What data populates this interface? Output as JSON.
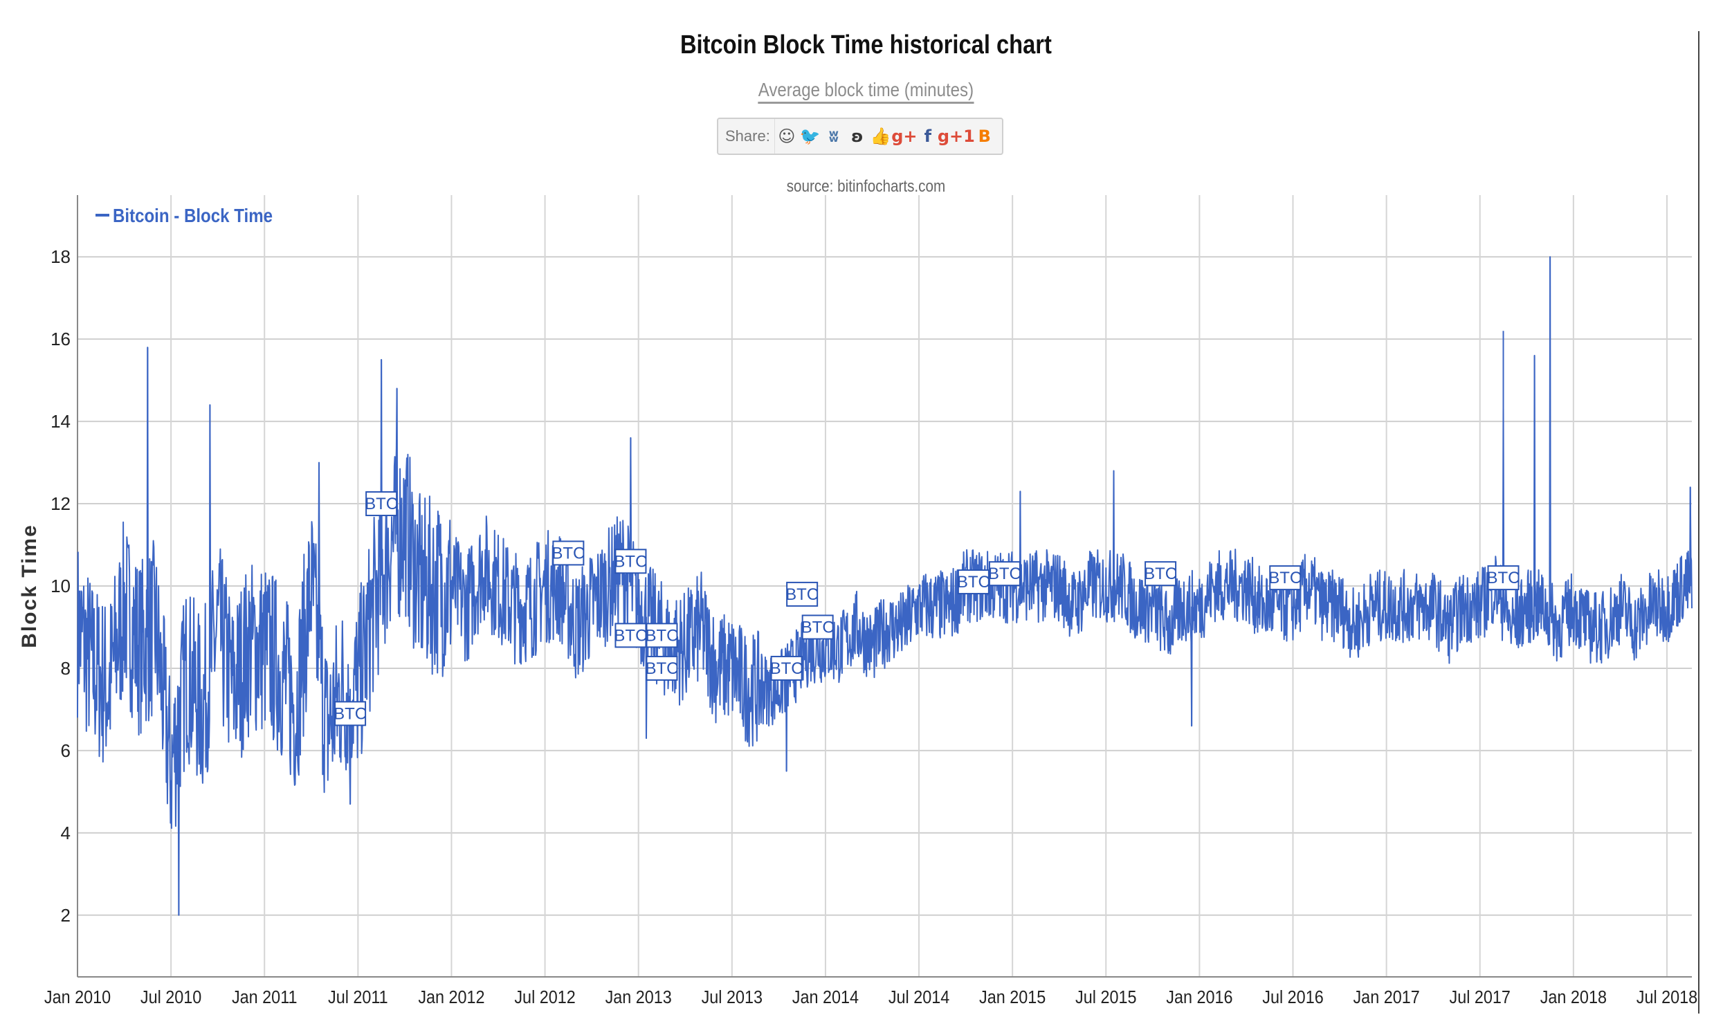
{
  "header": {
    "title": "Bitcoin Block Time historical chart",
    "subtitle": "Average block time (minutes)",
    "source": "source: bitinfocharts.com"
  },
  "share": {
    "label": "Share:",
    "icons": [
      {
        "name": "reddit-icon",
        "glyph": "☺",
        "color": "#555555"
      },
      {
        "name": "twitter-icon",
        "glyph": "🐦",
        "color": "#1da1f2"
      },
      {
        "name": "vk-icon",
        "glyph": "ʬ",
        "color": "#4a76a8"
      },
      {
        "name": "weibo-icon",
        "glyph": "ʚ",
        "color": "#333333"
      },
      {
        "name": "like-icon",
        "glyph": "👍",
        "color": "#4a76a8"
      },
      {
        "name": "google-plus-icon",
        "glyph": "g+",
        "color": "#dd4b39"
      },
      {
        "name": "facebook-icon",
        "glyph": "f",
        "color": "#3b5998"
      },
      {
        "name": "google-plus-one-icon",
        "glyph": "g+1",
        "color": "#dd4b39"
      },
      {
        "name": "blogger-icon",
        "glyph": "B",
        "color": "#f57d00"
      }
    ]
  },
  "chart_data": {
    "type": "line",
    "series": [
      {
        "name": "Bitcoin - Block Time",
        "color": "#3b65c4",
        "x": [
          "2010-01",
          "2010-02",
          "2010-03",
          "2010-04",
          "2010-05",
          "2010-06",
          "2010-07",
          "2010-08",
          "2010-09",
          "2010-10",
          "2010-11",
          "2010-12",
          "2011-01",
          "2011-02",
          "2011-03",
          "2011-04",
          "2011-05",
          "2011-06",
          "2011-07",
          "2011-08",
          "2011-09",
          "2011-10",
          "2011-11",
          "2011-12",
          "2012-01",
          "2012-02",
          "2012-03",
          "2012-04",
          "2012-05",
          "2012-06",
          "2012-07",
          "2012-08",
          "2012-09",
          "2012-10",
          "2012-11",
          "2012-12",
          "2013-01",
          "2013-02",
          "2013-03",
          "2013-04",
          "2013-05",
          "2013-06",
          "2013-07",
          "2013-08",
          "2013-09",
          "2013-10",
          "2013-11",
          "2013-12",
          "2014-01",
          "2014-02",
          "2014-03",
          "2014-04",
          "2014-05",
          "2014-06",
          "2014-07",
          "2014-08",
          "2014-09",
          "2014-10",
          "2014-11",
          "2014-12",
          "2015-01",
          "2015-02",
          "2015-03",
          "2015-04",
          "2015-05",
          "2015-06",
          "2015-07",
          "2015-08",
          "2015-09",
          "2015-10",
          "2015-11",
          "2015-12",
          "2016-01",
          "2016-02",
          "2016-03",
          "2016-04",
          "2016-05",
          "2016-06",
          "2016-07",
          "2016-08",
          "2016-09",
          "2016-10",
          "2016-11",
          "2016-12",
          "2017-01",
          "2017-02",
          "2017-03",
          "2017-04",
          "2017-05",
          "2017-06",
          "2017-07",
          "2017-08",
          "2017-09",
          "2017-10",
          "2017-11",
          "2017-12",
          "2018-01",
          "2018-02",
          "2018-03",
          "2018-04",
          "2018-05",
          "2018-06",
          "2018-07",
          "2018-08"
        ],
        "y": [
          9.0,
          8.0,
          7.5,
          9.5,
          8.5,
          9.0,
          5.5,
          8.0,
          7.0,
          9.0,
          7.5,
          8.5,
          8.5,
          8.0,
          7.0,
          10.0,
          6.5,
          7.5,
          7.5,
          9.5,
          11.0,
          11.5,
          10.0,
          10.0,
          10.0,
          9.5,
          10.5,
          10.0,
          9.5,
          9.5,
          10.0,
          10.0,
          9.0,
          9.5,
          10.0,
          10.5,
          9.5,
          9.0,
          8.5,
          8.5,
          9.0,
          8.0,
          8.0,
          7.5,
          7.5,
          7.5,
          8.0,
          8.5,
          8.5,
          8.5,
          9.0,
          8.5,
          9.0,
          9.0,
          9.5,
          9.5,
          9.5,
          10.0,
          10.0,
          10.0,
          10.0,
          10.0,
          10.0,
          10.0,
          9.5,
          10.0,
          10.0,
          10.0,
          9.5,
          9.5,
          9.0,
          9.5,
          9.5,
          10.0,
          10.0,
          10.0,
          9.5,
          9.5,
          9.5,
          10.0,
          9.5,
          9.5,
          9.0,
          9.5,
          9.5,
          9.5,
          9.5,
          9.5,
          9.0,
          9.5,
          9.5,
          10.0,
          9.0,
          9.5,
          9.5,
          9.0,
          9.5,
          9.0,
          9.0,
          9.5,
          9.0,
          9.5,
          9.5,
          10.0
        ],
        "spikes": [
          {
            "x": "2010-05",
            "y": 15.8
          },
          {
            "x": "2010-07",
            "y": 2.0
          },
          {
            "x": "2010-09",
            "y": 14.4
          },
          {
            "x": "2011-04",
            "y": 13.0
          },
          {
            "x": "2011-06",
            "y": 4.7
          },
          {
            "x": "2011-08",
            "y": 15.5
          },
          {
            "x": "2011-09",
            "y": 14.8
          },
          {
            "x": "2012-12",
            "y": 13.6
          },
          {
            "x": "2013-01",
            "y": 6.3
          },
          {
            "x": "2013-10",
            "y": 5.5
          },
          {
            "x": "2015-01",
            "y": 12.3
          },
          {
            "x": "2015-07",
            "y": 12.8
          },
          {
            "x": "2015-12",
            "y": 6.6
          },
          {
            "x": "2017-08",
            "y": 16.2
          },
          {
            "x": "2017-08",
            "y": 14.3
          },
          {
            "x": "2017-10",
            "y": 15.6
          },
          {
            "x": "2017-11",
            "y": 18.0
          },
          {
            "x": "2018-08",
            "y": 12.4
          }
        ]
      }
    ],
    "xlabel": "",
    "ylabel": "Block Time",
    "x_ticks": [
      "Jan 2010",
      "Jul 2010",
      "Jan 2011",
      "Jul 2011",
      "Jan 2012",
      "Jul 2012",
      "Jan 2013",
      "Jul 2013",
      "Jan 2014",
      "Jul 2014",
      "Jan 2015",
      "Jul 2015",
      "Jan 2016",
      "Jul 2016",
      "Jan 2017",
      "Jul 2017",
      "Jan 2018",
      "Jul 2018"
    ],
    "y_ticks": [
      "2",
      "4",
      "6",
      "8",
      "10",
      "12",
      "14",
      "16",
      "18"
    ],
    "xlim": [
      "2010-01",
      "2018-08"
    ],
    "ylim": [
      0.5,
      19.5
    ],
    "grid": true,
    "legend": "top-left",
    "annotations": [
      {
        "label": "BTC",
        "x": "2011-08",
        "y": 12.0
      },
      {
        "label": "BTC",
        "x": "2011-06",
        "y": 6.9
      },
      {
        "label": "BTC",
        "x": "2012-08",
        "y": 10.8
      },
      {
        "label": "BTC",
        "x": "2012-12",
        "y": 10.6
      },
      {
        "label": "BTC",
        "x": "2012-12",
        "y": 8.8
      },
      {
        "label": "BTC",
        "x": "2013-02",
        "y": 8.8
      },
      {
        "label": "BTC",
        "x": "2013-02",
        "y": 8.0
      },
      {
        "label": "BTC",
        "x": "2013-10",
        "y": 8.0
      },
      {
        "label": "BTC",
        "x": "2013-11",
        "y": 9.8
      },
      {
        "label": "BTC",
        "x": "2013-12",
        "y": 9.0
      },
      {
        "label": "BTC",
        "x": "2014-10",
        "y": 10.1
      },
      {
        "label": "BTC",
        "x": "2014-12",
        "y": 10.3
      },
      {
        "label": "BTC",
        "x": "2015-10",
        "y": 10.3
      },
      {
        "label": "BTC",
        "x": "2016-06",
        "y": 10.2
      },
      {
        "label": "BTC",
        "x": "2017-08",
        "y": 10.2
      }
    ]
  }
}
